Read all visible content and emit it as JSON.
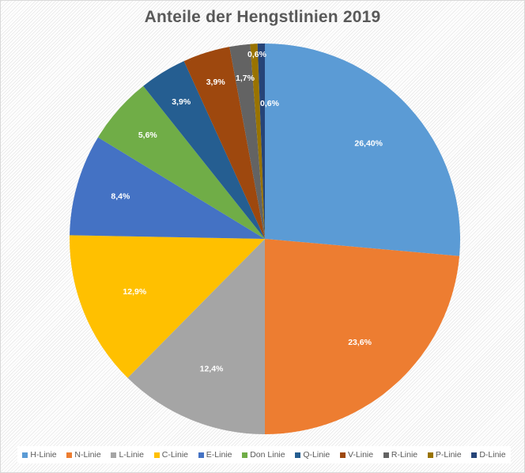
{
  "chart_data": {
    "type": "pie",
    "title": "Anteile der Hengstlinien 2019",
    "start_angle_deg": 0,
    "direction": "clockwise",
    "legend_position": "bottom",
    "slices": [
      {
        "name": "H-Linie",
        "value": 26.4,
        "label": "26,40%",
        "color": "#5B9BD5"
      },
      {
        "name": "N-Linie",
        "value": 23.6,
        "label": "23,6%",
        "color": "#ED7D31"
      },
      {
        "name": "L-Linie",
        "value": 12.4,
        "label": "12,4%",
        "color": "#A5A5A5"
      },
      {
        "name": "C-Linie",
        "value": 12.9,
        "label": "12,9%",
        "color": "#FFC000"
      },
      {
        "name": "E-Linie",
        "value": 8.4,
        "label": "8,4%",
        "color": "#4472C4"
      },
      {
        "name": "Don Linie",
        "value": 5.6,
        "label": "5,6%",
        "color": "#70AD47"
      },
      {
        "name": "Q-Linie",
        "value": 3.9,
        "label": "3,9%",
        "color": "#255E91"
      },
      {
        "name": "V-Linie",
        "value": 3.9,
        "label": "3,9%",
        "color": "#9E480E"
      },
      {
        "name": "R-Linie",
        "value": 1.7,
        "label": "1,7%",
        "color": "#636363"
      },
      {
        "name": "P-Linie",
        "value": 0.6,
        "label": "0,6%",
        "color": "#997300"
      },
      {
        "name": "D-Linie",
        "value": 0.6,
        "label": "0,6%",
        "color": "#264478"
      }
    ]
  }
}
